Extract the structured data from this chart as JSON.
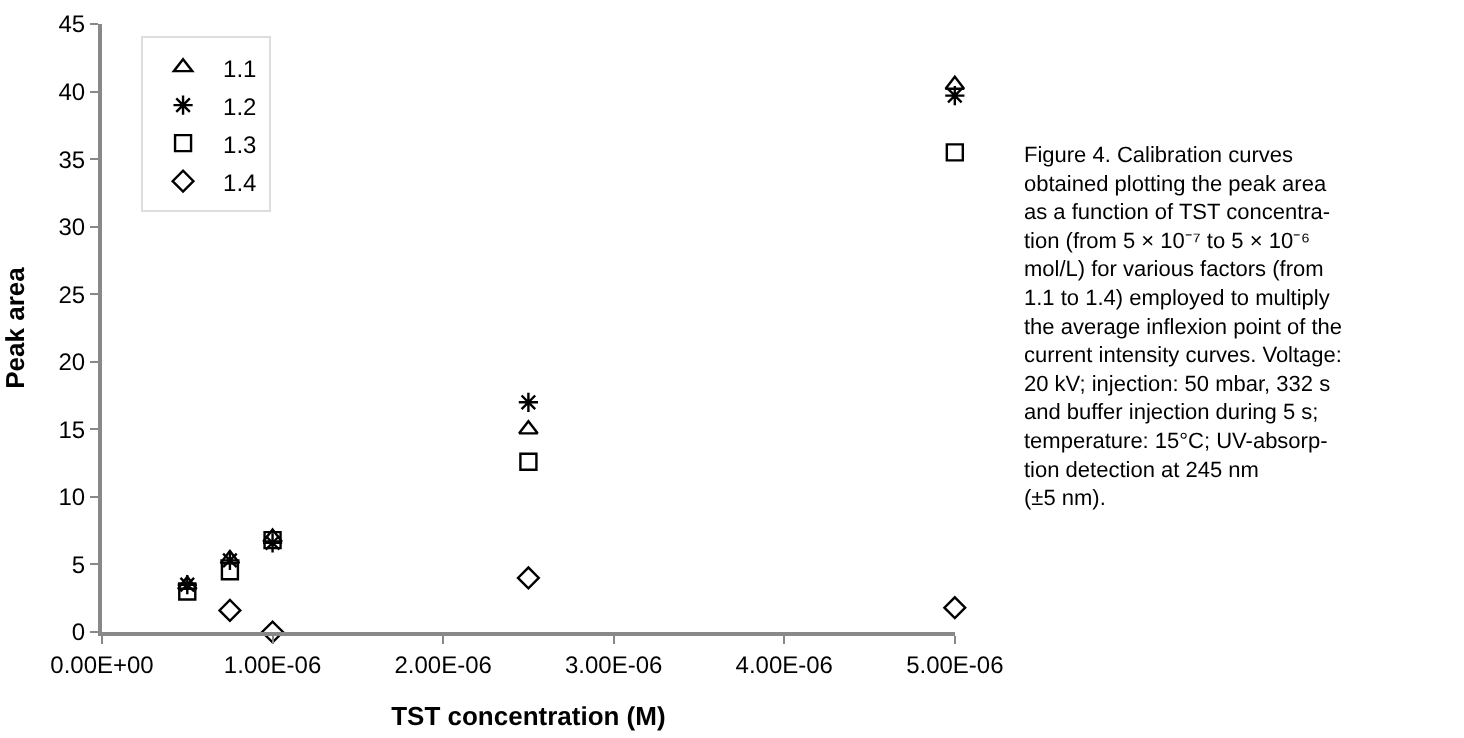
{
  "chart_data": {
    "type": "scatter",
    "xlabel": "TST concentration (M)",
    "ylabel": "Peak area",
    "xlim": [
      0,
      5e-06
    ],
    "ylim": [
      0,
      45
    ],
    "xticks": [
      {
        "value": 0,
        "label": "0.00E+00"
      },
      {
        "value": 1e-06,
        "label": "1.00E-06"
      },
      {
        "value": 2e-06,
        "label": "2.00E-06"
      },
      {
        "value": 3e-06,
        "label": "3.00E-06"
      },
      {
        "value": 4e-06,
        "label": "4.00E-06"
      },
      {
        "value": 5e-06,
        "label": "5.00E-06"
      }
    ],
    "yticks": [
      0,
      5,
      10,
      15,
      20,
      25,
      30,
      35,
      40,
      45
    ],
    "legend": "top left",
    "x": [
      5e-07,
      7.5e-07,
      1e-06,
      2.5e-06,
      5e-06
    ],
    "series": [
      {
        "name": "1.1",
        "color": "#000000",
        "marker": "triangle",
        "values": [
          3.5,
          5.4,
          7,
          15,
          40.5
        ]
      },
      {
        "name": "1.2",
        "color": "#000000",
        "marker": "cross",
        "values": [
          3.5,
          5.3,
          6.6,
          17,
          39.7
        ]
      },
      {
        "name": "1.3",
        "color": "#000000",
        "marker": "square",
        "values": [
          3,
          4.5,
          6.8,
          12.6,
          35.5
        ]
      },
      {
        "name": "1.4",
        "color": "#000000",
        "marker": "diamond",
        "x": [
          7.5e-07,
          1e-06,
          2.5e-06,
          5e-06
        ],
        "values": [
          1.6,
          0,
          4,
          1.8
        ]
      }
    ],
    "annotations": [
      "Figure 4. Calibration curves\nobtained plotting the peak area\nas a function of TST concentra-\ntion (from 5 × 10⁻⁷ to 5 × 10⁻⁶\nmol/L) for various factors (from\n1.1 to 1.4) employed to multiply\nthe average inflexion point of the\ncurrent intensity curves. Voltage:\n20 kV; injection: 50 mbar, 332 s\nand buffer injection during 5 s;\ntemperature: 15°C; UV-absorp-\ntion detection at 245 nm\n(±5 nm)."
    ]
  }
}
